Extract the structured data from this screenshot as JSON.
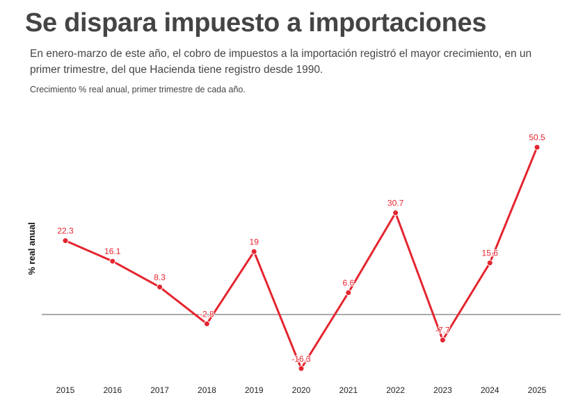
{
  "title": "Se dispara impuesto a importaciones",
  "subtitle": "En enero-marzo de este año, el cobro de impuestos a la importación registró el mayor crecimiento, en un primer trimestre, del que Hacienda tiene registro desde 1990.",
  "note": "Crecimiento % real anual, primer trimestre de cada año.",
  "colors": {
    "line": "#e4252f",
    "zero_line": "#555555",
    "text": "#444444"
  },
  "chart_data": {
    "type": "line",
    "title": "Se dispara impuesto a importaciones",
    "xlabel": "",
    "ylabel": "% real anual",
    "categories": [
      "2015",
      "2016",
      "2017",
      "2018",
      "2019",
      "2020",
      "2021",
      "2022",
      "2023",
      "2024",
      "2025"
    ],
    "series": [
      {
        "name": "Crecimiento % real anual",
        "values": [
          22.3,
          16.1,
          8.3,
          -2.8,
          19,
          -16.3,
          6.6,
          30.7,
          -7.7,
          15.6,
          50.5
        ]
      }
    ],
    "data_labels": [
      "22.3",
      "16.1",
      "8.3",
      "-2.8",
      "19",
      "-16.3",
      "6.6",
      "30.7",
      "-7.7",
      "15.6",
      "50.5"
    ],
    "ylim": [
      -16.3,
      50.5
    ],
    "grid": false,
    "zero_line": true,
    "legend": "none"
  }
}
